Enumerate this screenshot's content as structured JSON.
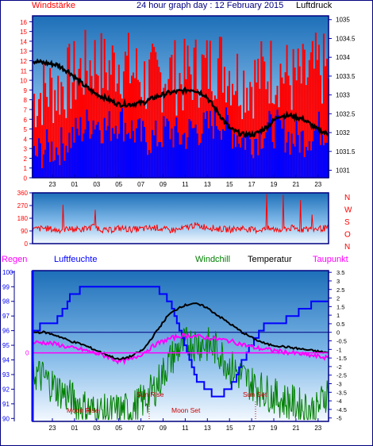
{
  "header": {
    "left_label": "Windstärke",
    "title": "24 hour graph day : 12 February 2015",
    "right_label": "Luftdruck"
  },
  "x_ticks": [
    "23",
    "01",
    "03",
    "05",
    "07",
    "09",
    "11",
    "13",
    "15",
    "17",
    "19",
    "21",
    "23"
  ],
  "colors": {
    "wind_gust": "#ff0000",
    "wind_avg": "#0000ff",
    "pressure": "#000000",
    "direction": "#ff0000",
    "humidity": "#0000ff",
    "windchill": "#008000",
    "temperature": "#000000",
    "dewpoint": "#ff00ff",
    "rain": "#ff00ff",
    "axis_label_red": "#ff0000",
    "axis_label_blue": "#0000ff",
    "frame": "#0000aa"
  },
  "panel3_labels": {
    "rain": "Regen",
    "humidity": "Luftfeuchte",
    "windchill": "Windchill",
    "temperature": "Temperatur",
    "dewpoint": "Taupunkt"
  },
  "annotations": {
    "moon_rise": "Moon Rise",
    "sun_rise": "Sun Rise",
    "moon_set": "Moon Set",
    "sun_set": "Sun Set"
  },
  "chart_data": [
    {
      "type": "line",
      "title": "24 hour graph day : 12 February 2015",
      "series": [
        {
          "name": "Windstärke",
          "unit_axis": "left",
          "values": [
            2,
            3,
            3,
            4,
            5,
            6,
            5,
            6,
            5,
            4,
            4,
            5,
            4,
            5,
            5,
            6,
            5,
            4,
            4,
            5,
            5,
            4,
            4,
            5,
            5
          ]
        },
        {
          "name": "Luftdruck",
          "unit_axis": "right",
          "values": [
            1033.9,
            1033.85,
            1033.8,
            1033.6,
            1033.3,
            1033.05,
            1032.9,
            1032.75,
            1032.75,
            1032.8,
            1032.95,
            1033.05,
            1033.1,
            1033.15,
            1033.0,
            1032.55,
            1032.1,
            1031.95,
            1031.95,
            1032.15,
            1032.45,
            1032.45,
            1032.35,
            1032.1,
            1031.95
          ]
        }
      ],
      "x_ticks": [
        "23",
        "01",
        "03",
        "05",
        "07",
        "09",
        "11",
        "13",
        "15",
        "17",
        "19",
        "21",
        "23"
      ],
      "y_left_ticks": [
        "0",
        "1",
        "2",
        "3",
        "4",
        "5",
        "6",
        "7",
        "8",
        "9",
        "10",
        "11",
        "12",
        "13",
        "14",
        "15",
        "16"
      ],
      "y_left_range": [
        0,
        16.6
      ],
      "y_right_ticks": [
        "1031",
        "1031.5",
        "1032",
        "1032.5",
        "1033",
        "1033.5",
        "1034",
        "1034.5",
        "1035"
      ],
      "y_right_range": [
        1030.8,
        1035.1
      ]
    },
    {
      "type": "scatter",
      "series": [
        {
          "name": "Windrichtung",
          "values": [
            100,
            110,
            95,
            105,
            100,
            120,
            90,
            110,
            100,
            105,
            115,
            95,
            100,
            130,
            120,
            105,
            100,
            110,
            95,
            105,
            100,
            110,
            100,
            105,
            110
          ]
        }
      ],
      "x_ticks": [
        "23",
        "01",
        "03",
        "05",
        "07",
        "09",
        "11",
        "13",
        "15",
        "17",
        "19",
        "21",
        "23"
      ],
      "y_left_ticks": [
        "0",
        "90",
        "180",
        "270",
        "360"
      ],
      "y_left_range": [
        0,
        360
      ],
      "y_right_ticks": [
        "N",
        "W",
        "S",
        "O",
        "N"
      ]
    },
    {
      "type": "line",
      "series": [
        {
          "name": "Luftfeuchte",
          "unit_axis": "left",
          "values": [
            96.2,
            96.3,
            96.8,
            98.3,
            99.0,
            99.0,
            99.0,
            99.0,
            99.0,
            99.0,
            99.0,
            98.0,
            96.0,
            93.0,
            92.0,
            91.5,
            92.0,
            94.0,
            95.5,
            96.5,
            96.5,
            97.0,
            97.5,
            98.0,
            98.0
          ]
        },
        {
          "name": "Windchill",
          "unit_axis": "right",
          "values": [
            -2.3,
            -2.7,
            -3.3,
            -3.8,
            -4.3,
            -4.6,
            -4.7,
            -4.6,
            -4.5,
            -4.0,
            -3.2,
            -1.8,
            -0.8,
            -0.6,
            -0.7,
            -1.0,
            -2.0,
            -2.6,
            -3.1,
            -3.5,
            -3.9,
            -4.1,
            -4.4,
            -4.6,
            -3.3
          ]
        },
        {
          "name": "Temperatur",
          "unit_axis": "right",
          "values": [
            0,
            0,
            -0.2,
            -0.5,
            -0.7,
            -1.0,
            -1.3,
            -1.6,
            -1.4,
            -1.0,
            0,
            1.0,
            1.5,
            1.7,
            1.5,
            1.0,
            0.5,
            0,
            -0.4,
            -0.7,
            -0.8,
            -0.9,
            -1.0,
            -1.1,
            -1.2
          ]
        },
        {
          "name": "Taupunkt",
          "unit_axis": "right",
          "values": [
            -0.6,
            -0.6,
            -0.7,
            -0.9,
            -1.0,
            -1.2,
            -1.4,
            -1.7,
            -1.6,
            -1.2,
            -0.7,
            -0.4,
            -0.2,
            -0.2,
            -0.3,
            -0.4,
            -0.5,
            -0.7,
            -0.9,
            -1.0,
            -1.1,
            -1.2,
            -1.3,
            -1.4,
            -1.5
          ]
        },
        {
          "name": "Regen",
          "unit_axis": "left",
          "values": [
            0,
            0,
            0,
            0,
            0,
            0,
            0,
            0,
            0,
            0,
            0,
            0,
            0,
            0,
            0,
            0,
            0,
            0,
            0,
            0,
            0,
            0,
            0,
            0,
            0
          ]
        }
      ],
      "x_ticks": [
        "23",
        "01",
        "03",
        "05",
        "07",
        "09",
        "11",
        "13",
        "15",
        "17",
        "19",
        "21",
        "23"
      ],
      "y_left_ticks": [
        "90",
        "91",
        "92",
        "93",
        "94",
        "95",
        "96",
        "97",
        "98",
        "99",
        "100"
      ],
      "y_left_range": [
        89.8,
        100.1
      ],
      "y_right_ticks": [
        "3.5",
        "3",
        "2.5",
        "2",
        "1.5",
        "1",
        "0.5",
        "0",
        "-0.5",
        "-1",
        "-1.5",
        "-2",
        "-2.5",
        "-3",
        "-3.5",
        "-4",
        "-4.5",
        "-5"
      ],
      "y_right_range": [
        -5.2,
        3.6
      ],
      "rain_axis_label": "0"
    }
  ]
}
